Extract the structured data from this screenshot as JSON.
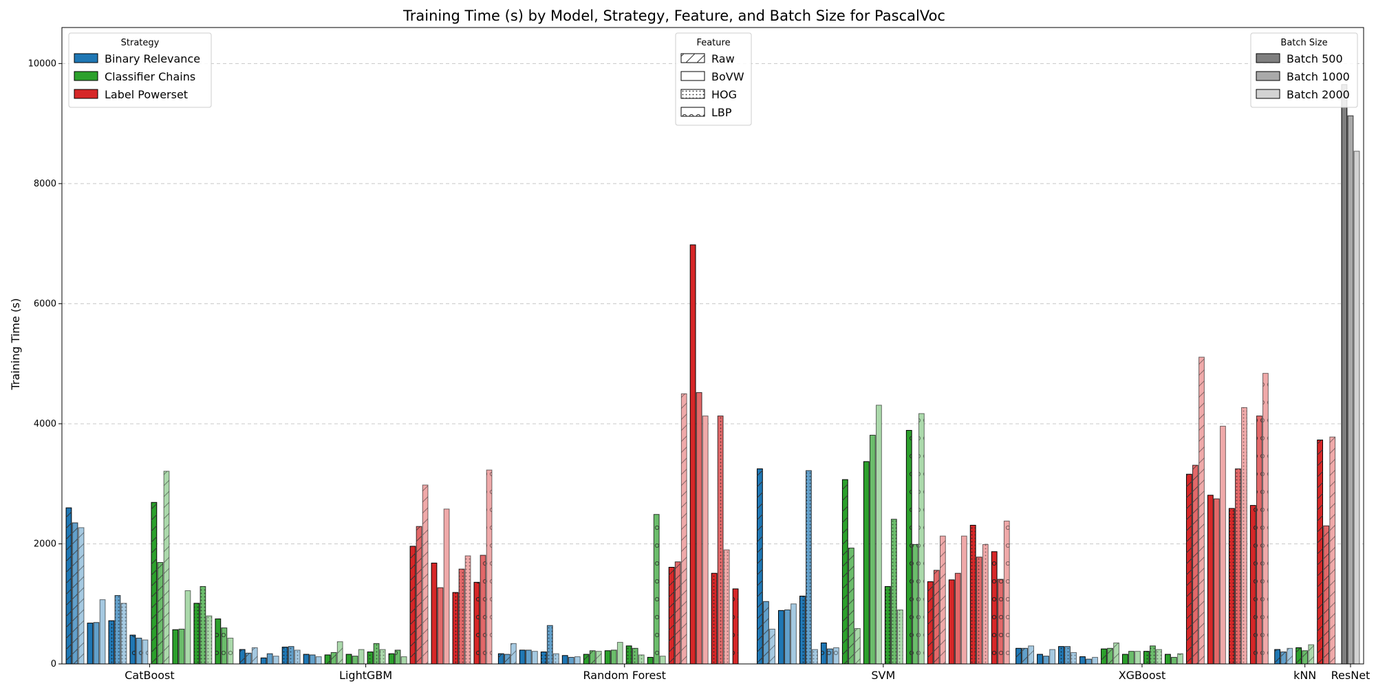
{
  "chart_data": {
    "type": "bar",
    "title": "Training Time (s) by Model, Strategy, Feature, and Batch Size for PascalVoc",
    "ylabel": "Training Time (s)",
    "xlabel": "",
    "ylim": [
      0,
      10600
    ],
    "yticks": [
      0,
      2000,
      4000,
      6000,
      8000,
      10000
    ],
    "grid": "y-dashed",
    "categories": [
      "CatBoost",
      "LightGBM",
      "Random Forest",
      "SVM",
      "XGBoost",
      "kNN",
      "ResNet"
    ],
    "legends": {
      "strategy": {
        "title": "Strategy",
        "placement": "top-left",
        "entries": [
          {
            "name": "Binary Relevance",
            "color": "#1f77b4"
          },
          {
            "name": "Classifier Chains",
            "color": "#2ca02c"
          },
          {
            "name": "Label Powerset",
            "color": "#d62728"
          }
        ]
      },
      "feature": {
        "title": "Feature",
        "placement": "top-center",
        "entries": [
          {
            "name": "Raw",
            "hatch": "diagonal"
          },
          {
            "name": "BoVW",
            "hatch": "none"
          },
          {
            "name": "HOG",
            "hatch": "dots"
          },
          {
            "name": "LBP",
            "hatch": "circles"
          }
        ]
      },
      "batch": {
        "title": "Batch Size",
        "placement": "top-right",
        "entries": [
          {
            "name": "Batch 500",
            "shade": 1.0,
            "color": "#7f7f7f"
          },
          {
            "name": "Batch 1000",
            "shade": 0.7,
            "color": "#a9a9a9"
          },
          {
            "name": "Batch 2000",
            "shade": 0.4,
            "color": "#d3d3d3"
          }
        ]
      }
    },
    "groups": [
      {
        "model": "CatBoost",
        "series": [
          {
            "strategy": "Binary Relevance",
            "feature": "Raw",
            "values": [
              2600,
              2350,
              2270
            ]
          },
          {
            "strategy": "Binary Relevance",
            "feature": "BoVW",
            "values": [
              680,
              690,
              1070
            ]
          },
          {
            "strategy": "Binary Relevance",
            "feature": "HOG",
            "values": [
              720,
              1140,
              1010
            ]
          },
          {
            "strategy": "Binary Relevance",
            "feature": "LBP",
            "values": [
              480,
              430,
              400
            ]
          },
          {
            "strategy": "Classifier Chains",
            "feature": "Raw",
            "values": [
              2690,
              1690,
              3210
            ]
          },
          {
            "strategy": "Classifier Chains",
            "feature": "BoVW",
            "values": [
              570,
              580,
              1220
            ]
          },
          {
            "strategy": "Classifier Chains",
            "feature": "HOG",
            "values": [
              1010,
              1290,
              800
            ]
          },
          {
            "strategy": "Classifier Chains",
            "feature": "LBP",
            "values": [
              750,
              600,
              430
            ]
          }
        ]
      },
      {
        "model": "LightGBM",
        "series": [
          {
            "strategy": "Binary Relevance",
            "feature": "Raw",
            "values": [
              240,
              180,
              270
            ]
          },
          {
            "strategy": "Binary Relevance",
            "feature": "BoVW",
            "values": [
              100,
              170,
              130
            ]
          },
          {
            "strategy": "Binary Relevance",
            "feature": "HOG",
            "values": [
              280,
              290,
              230
            ]
          },
          {
            "strategy": "Binary Relevance",
            "feature": "LBP",
            "values": [
              160,
              150,
              120
            ]
          },
          {
            "strategy": "Classifier Chains",
            "feature": "Raw",
            "values": [
              150,
              190,
              370
            ]
          },
          {
            "strategy": "Classifier Chains",
            "feature": "BoVW",
            "values": [
              160,
              130,
              240
            ]
          },
          {
            "strategy": "Classifier Chains",
            "feature": "HOG",
            "values": [
              200,
              340,
              240
            ]
          },
          {
            "strategy": "Classifier Chains",
            "feature": "LBP",
            "values": [
              170,
              230,
              120
            ]
          },
          {
            "strategy": "Label Powerset",
            "feature": "Raw",
            "values": [
              1960,
              2290,
              2980
            ]
          },
          {
            "strategy": "Label Powerset",
            "feature": "BoVW",
            "values": [
              1680,
              1270,
              2580
            ]
          },
          {
            "strategy": "Label Powerset",
            "feature": "HOG",
            "values": [
              1190,
              1580,
              1800
            ]
          },
          {
            "strategy": "Label Powerset",
            "feature": "LBP",
            "values": [
              1360,
              1810,
              3230
            ]
          }
        ]
      },
      {
        "model": "Random Forest",
        "series": [
          {
            "strategy": "Binary Relevance",
            "feature": "Raw",
            "values": [
              170,
              160,
              340
            ]
          },
          {
            "strategy": "Binary Relevance",
            "feature": "BoVW",
            "values": [
              230,
              230,
              210
            ]
          },
          {
            "strategy": "Binary Relevance",
            "feature": "HOG",
            "values": [
              200,
              640,
              170
            ]
          },
          {
            "strategy": "Binary Relevance",
            "feature": "LBP",
            "values": [
              140,
              110,
              120
            ]
          },
          {
            "strategy": "Classifier Chains",
            "feature": "Raw",
            "values": [
              160,
              220,
              210
            ]
          },
          {
            "strategy": "Classifier Chains",
            "feature": "BoVW",
            "values": [
              220,
              230,
              360
            ]
          },
          {
            "strategy": "Classifier Chains",
            "feature": "HOG",
            "values": [
              300,
              260,
              150
            ]
          },
          {
            "strategy": "Classifier Chains",
            "feature": "LBP",
            "values": [
              110,
              2490,
              130
            ]
          },
          {
            "strategy": "Label Powerset",
            "feature": "Raw",
            "values": [
              1610,
              1700,
              4500
            ]
          },
          {
            "strategy": "Label Powerset",
            "feature": "BoVW",
            "values": [
              6980,
              4520,
              4130
            ]
          },
          {
            "strategy": "Label Powerset",
            "feature": "HOG",
            "values": [
              1510,
              4130,
              1900
            ]
          },
          {
            "strategy": "Label Powerset",
            "feature": "LBP",
            "values": [
              1250,
              0,
              0
            ]
          }
        ]
      },
      {
        "model": "SVM",
        "series": [
          {
            "strategy": "Binary Relevance",
            "feature": "Raw",
            "values": [
              3250,
              1040,
              580
            ]
          },
          {
            "strategy": "Binary Relevance",
            "feature": "BoVW",
            "values": [
              890,
              900,
              1000
            ]
          },
          {
            "strategy": "Binary Relevance",
            "feature": "HOG",
            "values": [
              1130,
              3220,
              240
            ]
          },
          {
            "strategy": "Binary Relevance",
            "feature": "LBP",
            "values": [
              350,
              250,
              270
            ]
          },
          {
            "strategy": "Classifier Chains",
            "feature": "Raw",
            "values": [
              3070,
              1930,
              590
            ]
          },
          {
            "strategy": "Classifier Chains",
            "feature": "BoVW",
            "values": [
              3370,
              3810,
              4310
            ]
          },
          {
            "strategy": "Classifier Chains",
            "feature": "HOG",
            "values": [
              1290,
              2410,
              900
            ]
          },
          {
            "strategy": "Classifier Chains",
            "feature": "LBP",
            "values": [
              3890,
              1990,
              4170
            ]
          },
          {
            "strategy": "Label Powerset",
            "feature": "Raw",
            "values": [
              1370,
              1560,
              2130
            ]
          },
          {
            "strategy": "Label Powerset",
            "feature": "BoVW",
            "values": [
              1400,
              1510,
              2130
            ]
          },
          {
            "strategy": "Label Powerset",
            "feature": "HOG",
            "values": [
              2310,
              1780,
              1990
            ]
          },
          {
            "strategy": "Label Powerset",
            "feature": "LBP",
            "values": [
              1870,
              1410,
              2380
            ]
          }
        ]
      },
      {
        "model": "XGBoost",
        "series": [
          {
            "strategy": "Binary Relevance",
            "feature": "Raw",
            "values": [
              260,
              260,
              300
            ]
          },
          {
            "strategy": "Binary Relevance",
            "feature": "BoVW",
            "values": [
              160,
              130,
              240
            ]
          },
          {
            "strategy": "Binary Relevance",
            "feature": "HOG",
            "values": [
              290,
              290,
              190
            ]
          },
          {
            "strategy": "Binary Relevance",
            "feature": "LBP",
            "values": [
              120,
              80,
              110
            ]
          },
          {
            "strategy": "Classifier Chains",
            "feature": "Raw",
            "values": [
              250,
              260,
              350
            ]
          },
          {
            "strategy": "Classifier Chains",
            "feature": "BoVW",
            "values": [
              160,
              210,
              210
            ]
          },
          {
            "strategy": "Classifier Chains",
            "feature": "HOG",
            "values": [
              210,
              300,
              240
            ]
          },
          {
            "strategy": "Classifier Chains",
            "feature": "LBP",
            "values": [
              160,
              110,
              170
            ]
          },
          {
            "strategy": "Label Powerset",
            "feature": "Raw",
            "values": [
              3160,
              3310,
              5110
            ]
          },
          {
            "strategy": "Label Powerset",
            "feature": "BoVW",
            "values": [
              2810,
              2750,
              3960
            ]
          },
          {
            "strategy": "Label Powerset",
            "feature": "HOG",
            "values": [
              2590,
              3250,
              4270
            ]
          },
          {
            "strategy": "Label Powerset",
            "feature": "LBP",
            "values": [
              2640,
              4130,
              4840
            ]
          }
        ]
      },
      {
        "model": "kNN",
        "series": [
          {
            "strategy": "Binary Relevance",
            "feature": "Raw",
            "values": [
              240,
              200,
              260
            ]
          },
          {
            "strategy": "Classifier Chains",
            "feature": "Raw",
            "values": [
              270,
              220,
              320
            ]
          },
          {
            "strategy": "Label Powerset",
            "feature": "Raw",
            "values": [
              3730,
              2300,
              3780
            ]
          }
        ]
      },
      {
        "model": "ResNet",
        "series": [
          {
            "strategy": "",
            "feature": "BoVW",
            "values": [
              9650,
              9130,
              8540
            ],
            "colors": [
              "#7f7f7f",
              "#a9a9a9",
              "#d3d3d3"
            ]
          }
        ]
      }
    ]
  }
}
